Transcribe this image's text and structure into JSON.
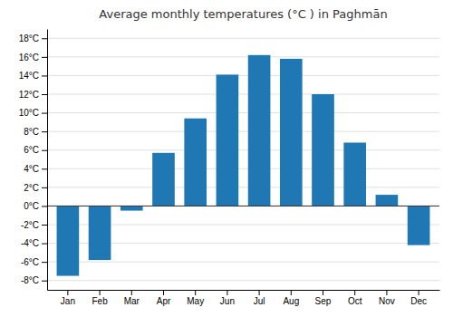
{
  "chart_data": {
    "type": "bar",
    "title": "Average monthly temperatures (°C ) in Paghmān",
    "categories": [
      "Jan",
      "Feb",
      "Mar",
      "Apr",
      "May",
      "Jun",
      "Jul",
      "Aug",
      "Sep",
      "Oct",
      "Nov",
      "Dec"
    ],
    "values": [
      -7.5,
      -5.8,
      -0.5,
      5.7,
      9.4,
      14.1,
      16.2,
      15.8,
      12.0,
      6.8,
      1.2,
      -4.2
    ],
    "ylim": [
      -9,
      19
    ],
    "yticks": [
      {
        "value": -8,
        "label": "-8°C"
      },
      {
        "value": -6,
        "label": "-6°C"
      },
      {
        "value": -4,
        "label": "-4°C"
      },
      {
        "value": -2,
        "label": "-2°C"
      },
      {
        "value": 0,
        "label": "0°C"
      },
      {
        "value": 2,
        "label": "2°C"
      },
      {
        "value": 4,
        "label": "4°C"
      },
      {
        "value": 6,
        "label": "6°C"
      },
      {
        "value": 8,
        "label": "8°C"
      },
      {
        "value": 10,
        "label": "10°C"
      },
      {
        "value": 12,
        "label": "12°C"
      },
      {
        "value": 14,
        "label": "14°C"
      },
      {
        "value": 16,
        "label": "16°C"
      },
      {
        "value": 18,
        "label": "18°C"
      }
    ],
    "grid": true
  }
}
